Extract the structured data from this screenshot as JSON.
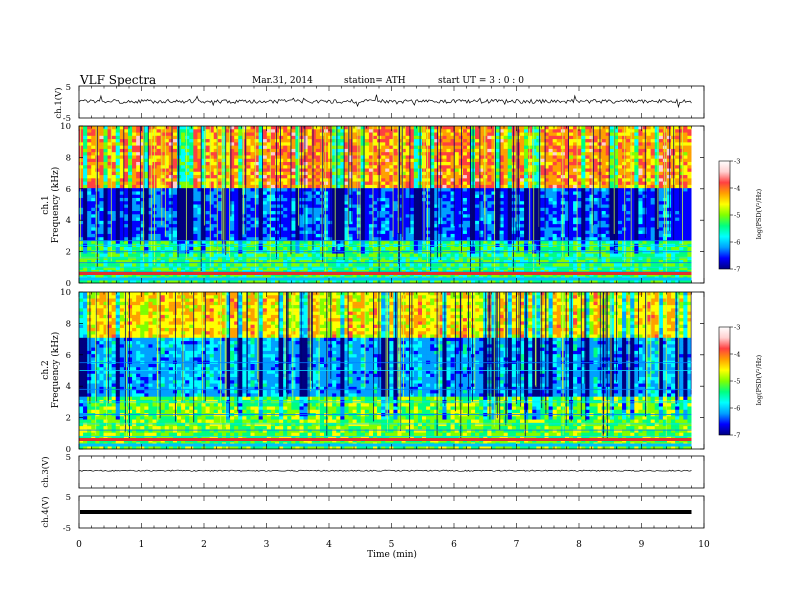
{
  "header": {
    "title": "VLF  Spectra",
    "date": "Mar.31, 2014",
    "station": "station= ATH",
    "start": "start  UT =   3  : 0  : 0"
  },
  "chart_data": {
    "type": "heatmap",
    "x_axis": {
      "label": "Time  (min)",
      "range": [
        0,
        10
      ],
      "ticks": [
        "0",
        "1",
        "2",
        "3",
        "4",
        "5",
        "6",
        "7",
        "8",
        "9",
        "10"
      ],
      "data_end_min": 9.8
    },
    "panels": [
      {
        "id": "ch1-waveform",
        "kind": "line",
        "ylabel": "ch.1(V)",
        "yticks": [
          "5",
          "-5"
        ],
        "ylim": [
          -5,
          5
        ],
        "level": 0.2,
        "color": "#000000"
      },
      {
        "id": "ch1-spectrogram",
        "kind": "heatmap",
        "ylabel_line1": "ch.1",
        "ylabel_line2": "Frequency  (kHz)",
        "yticks": [
          "10",
          "8",
          "6",
          "4",
          "2",
          "0"
        ],
        "ylim": [
          0,
          10
        ]
      },
      {
        "id": "ch2-spectrogram",
        "kind": "heatmap",
        "ylabel_line1": "ch.2",
        "ylabel_line2": "Frequency  (kHz)",
        "yticks": [
          "10",
          "8",
          "6",
          "4",
          "2",
          "0"
        ],
        "ylim": [
          0,
          10
        ]
      },
      {
        "id": "ch3-waveform",
        "kind": "line",
        "ylabel": "ch.3(V)",
        "yticks": [
          "5"
        ],
        "ylim": [
          -5,
          5
        ],
        "level": 0.4,
        "color": "#000000"
      },
      {
        "id": "ch4-waveform",
        "kind": "line",
        "ylabel": "ch.4(V)",
        "yticks": [
          "5",
          "-5"
        ],
        "ylim": [
          -5,
          5
        ],
        "level": 0.0,
        "color": "#000000"
      }
    ],
    "colorbar": {
      "label": "log(PSD(V²/Hz)",
      "ticks": [
        "-3",
        "-4",
        "-5",
        "-6",
        "-7"
      ],
      "range": [
        -7,
        -3
      ],
      "colors": [
        "#000080",
        "#0000ff",
        "#00a0ff",
        "#00ffff",
        "#00ff80",
        "#80ff00",
        "#ffff00",
        "#ffa000",
        "#ff4040",
        "#ffd0d0",
        "#ffffff"
      ]
    }
  }
}
